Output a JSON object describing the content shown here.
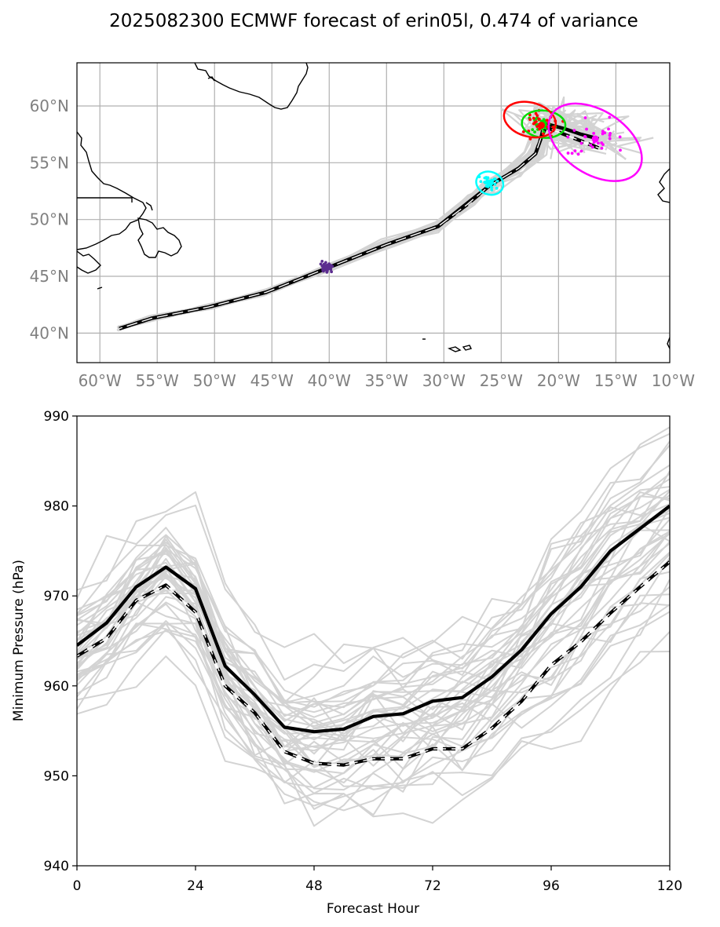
{
  "title": "2025082300 ECMWF forecast of erin05l, 0.474 of variance",
  "colors": {
    "ensemble": "#d3d3d3",
    "mean": "#000000",
    "grid": "#b0b0b0",
    "coast": "#000000",
    "h24": "#5b2c8f",
    "h48": "#00ffff",
    "h72": "#ff00ff",
    "h96": "#00dd00",
    "h120": "#ff0000"
  },
  "chart_data": [
    {
      "type": "line",
      "name": "track-map",
      "x_ticks": [
        "60°W",
        "55°W",
        "50°W",
        "45°W",
        "40°W",
        "35°W",
        "30°W",
        "25°W",
        "20°W",
        "15°W",
        "10°W"
      ],
      "x_tick_values": [
        -60,
        -55,
        -50,
        -45,
        -40,
        -35,
        -30,
        -25,
        -20,
        -15,
        -10
      ],
      "y_ticks": [
        "60°N",
        "55°N",
        "50°N",
        "45°N",
        "40°N"
      ],
      "y_tick_values": [
        60,
        55,
        50,
        45,
        40
      ],
      "xlim": [
        -62,
        -10.3
      ],
      "ylim": [
        37.4,
        63.8
      ],
      "grid": true,
      "mean_track": {
        "lon": [
          -58.3,
          -55.5,
          -50.5,
          -45.5,
          -40,
          -35,
          -30.5,
          -27.5,
          -26,
          -23.5,
          -22,
          -21.5,
          -21,
          -19.5,
          -18,
          -16.5
        ],
        "lat": [
          40.4,
          41.3,
          42.3,
          43.6,
          45.8,
          47.8,
          49.4,
          51.8,
          53,
          54.5,
          55.8,
          57.2,
          58.4,
          58,
          57.5,
          57.1
        ]
      },
      "mean_track_dashed": {
        "lon": [
          -58.3,
          -55.5,
          -50.5,
          -45.5,
          -40,
          -35,
          -30.5,
          -28,
          -26,
          -23.5,
          -22,
          -21.5,
          -21.3,
          -20,
          -18,
          -16.5
        ],
        "lat": [
          40.4,
          41.3,
          42.3,
          43.6,
          45.8,
          47.8,
          49.4,
          51.3,
          53,
          54.5,
          55.8,
          57.3,
          58.2,
          57.7,
          56.9,
          56.3
        ]
      },
      "ellipses": [
        {
          "hour": "48",
          "lon": -26.0,
          "lat": 53.2,
          "rx_deg": 1.2,
          "ry_deg": 1.0,
          "angle": 20
        },
        {
          "hour": "96",
          "lon": -21.3,
          "lat": 58.4,
          "rx_deg": 1.9,
          "ry_deg": 1.2,
          "angle": 5
        },
        {
          "hour": "120",
          "lon": -22.5,
          "lat": 58.8,
          "rx_deg": 2.3,
          "ry_deg": 1.5,
          "angle": 15
        },
        {
          "hour": "72",
          "lon": -16.8,
          "lat": 56.8,
          "rx_deg": 4.5,
          "ry_deg": 2.8,
          "angle": 33
        }
      ],
      "centers": [
        {
          "hour": "24",
          "lon": -40.2,
          "lat": 45.8
        },
        {
          "hour": "48",
          "lon": -26.0,
          "lat": 53.2
        },
        {
          "hour": "72",
          "lon": -16.8,
          "lat": 57.1
        },
        {
          "hour": "96",
          "lon": -21.3,
          "lat": 58.4
        },
        {
          "hour": "120",
          "lon": -21.5,
          "lat": 58.3
        }
      ]
    },
    {
      "type": "line",
      "name": "minimum-pressure",
      "xlabel": "Forecast Hour",
      "ylabel": "Minimum Pressure (hPa)",
      "xlim": [
        0,
        120
      ],
      "ylim": [
        940,
        990
      ],
      "x_ticks": [
        0,
        24,
        48,
        72,
        96,
        120
      ],
      "y_ticks": [
        940,
        950,
        960,
        970,
        980,
        990
      ],
      "grid": false,
      "x": [
        0,
        6,
        12,
        18,
        24,
        30,
        36,
        42,
        48,
        54,
        60,
        66,
        72,
        78,
        84,
        90,
        96,
        102,
        108,
        114,
        120
      ],
      "mean": [
        964.5,
        967,
        971,
        973.2,
        970.8,
        962.2,
        959,
        955.4,
        954.9,
        955.2,
        956.6,
        956.9,
        958.3,
        958.7,
        961,
        964,
        968,
        971,
        975,
        977.5,
        980
      ],
      "mean_dashed": [
        963.3,
        965.3,
        969.5,
        971.2,
        968.2,
        960,
        957,
        952.7,
        951.4,
        951.2,
        951.9,
        951.9,
        953,
        953,
        955.3,
        958.3,
        962.3,
        964.9,
        968.1,
        971,
        973.8
      ]
    }
  ]
}
